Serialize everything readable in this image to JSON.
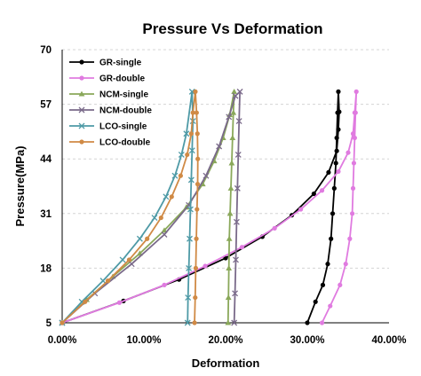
{
  "chart_data": {
    "type": "line",
    "title": "Pressure  Vs  Deformation",
    "xlabel": "Deformation",
    "ylabel": "Pressure(MPa)",
    "xlim": [
      0,
      0.4
    ],
    "ylim": [
      5,
      70
    ],
    "x_ticks": [
      0,
      0.1,
      0.2,
      0.3,
      0.4
    ],
    "x_tick_labels": [
      "0.00%",
      "10.00%",
      "20.00%",
      "30.00%",
      "40.00%"
    ],
    "y_ticks": [
      5,
      18,
      31,
      44,
      57,
      70
    ],
    "y_tick_labels": [
      "5",
      "18",
      "31",
      "44",
      "57",
      "70"
    ],
    "grid": true,
    "legend_position": "top-left",
    "series": [
      {
        "name": "GR-single",
        "color": "#000000",
        "marker": "circle",
        "x": [
          0,
          0.075,
          0.143,
          0.2,
          0.245,
          0.281,
          0.308,
          0.326,
          0.336,
          0.338,
          0.339,
          0.338,
          0.337,
          0.336,
          0.335,
          0.333,
          0.331,
          0.329,
          0.325,
          0.319,
          0.31,
          0.3
        ],
        "y": [
          5,
          10.2,
          15.3,
          20.4,
          25.5,
          30.6,
          35.7,
          40.8,
          45.9,
          51,
          55.2,
          60,
          55,
          49,
          43,
          37,
          31,
          25,
          19,
          14,
          10,
          5
        ]
      },
      {
        "name": "GR-double",
        "color": "#e07be0",
        "marker": "circle",
        "x": [
          0,
          0.07,
          0.125,
          0.175,
          0.22,
          0.26,
          0.292,
          0.318,
          0.338,
          0.35,
          0.356,
          0.358,
          0.36,
          0.359,
          0.358,
          0.357,
          0.356,
          0.355,
          0.352,
          0.347,
          0.34,
          0.328,
          0.318
        ],
        "y": [
          5,
          9.8,
          14,
          18.5,
          23,
          27.5,
          32,
          36.5,
          41,
          45.5,
          50,
          55,
          60,
          55,
          49,
          43,
          37,
          31,
          25,
          19,
          14,
          9,
          5
        ]
      },
      {
        "name": "NCM-single",
        "color": "#8aa85a",
        "marker": "triangle",
        "x": [
          0,
          0.03,
          0.062,
          0.095,
          0.125,
          0.152,
          0.172,
          0.186,
          0.197,
          0.205,
          0.2105,
          0.2095,
          0.2085,
          0.2075,
          0.2065,
          0.2055,
          0.2045,
          0.204,
          0.2035,
          0.203
        ],
        "y": [
          5,
          10.5,
          16,
          21.5,
          27,
          32.5,
          38,
          43.5,
          49,
          54.5,
          60,
          55,
          49,
          43,
          37,
          31,
          25,
          18,
          11,
          5
        ]
      },
      {
        "name": "NCM-double",
        "color": "#7a6a8a",
        "marker": "x",
        "x": [
          0,
          0.04,
          0.085,
          0.125,
          0.155,
          0.176,
          0.192,
          0.204,
          0.212,
          0.2175,
          0.2165,
          0.2155,
          0.2145,
          0.2135,
          0.2125,
          0.2115,
          0.2105
        ],
        "y": [
          5,
          12,
          19,
          26,
          33,
          40,
          47,
          54,
          59,
          60,
          53,
          45,
          37,
          29,
          20,
          12,
          5
        ]
      },
      {
        "name": "LCO-single",
        "color": "#4e9aa6",
        "marker": "x",
        "x": [
          0,
          0.024,
          0.05,
          0.074,
          0.095,
          0.113,
          0.127,
          0.138,
          0.146,
          0.152,
          0.159,
          0.16,
          0.159,
          0.158,
          0.157,
          0.156,
          0.155,
          0.154,
          0.1535
        ],
        "y": [
          5,
          10,
          15,
          20,
          25,
          30,
          35,
          40,
          45,
          50,
          60,
          53,
          46,
          39,
          32,
          25,
          18,
          11,
          5
        ]
      },
      {
        "name": "LCO-double",
        "color": "#d08a45",
        "marker": "circle",
        "x": [
          0,
          0.028,
          0.056,
          0.082,
          0.104,
          0.121,
          0.134,
          0.145,
          0.153,
          0.158,
          0.16,
          0.163,
          0.1645,
          0.1655,
          0.166,
          0.1658,
          0.165,
          0.1642,
          0.1635,
          0.1628,
          0.162
        ],
        "y": [
          5,
          10,
          15,
          20,
          25,
          30,
          35,
          40,
          45,
          50,
          55,
          60,
          55,
          50,
          44,
          38,
          32,
          25,
          18,
          11,
          5
        ]
      }
    ]
  }
}
